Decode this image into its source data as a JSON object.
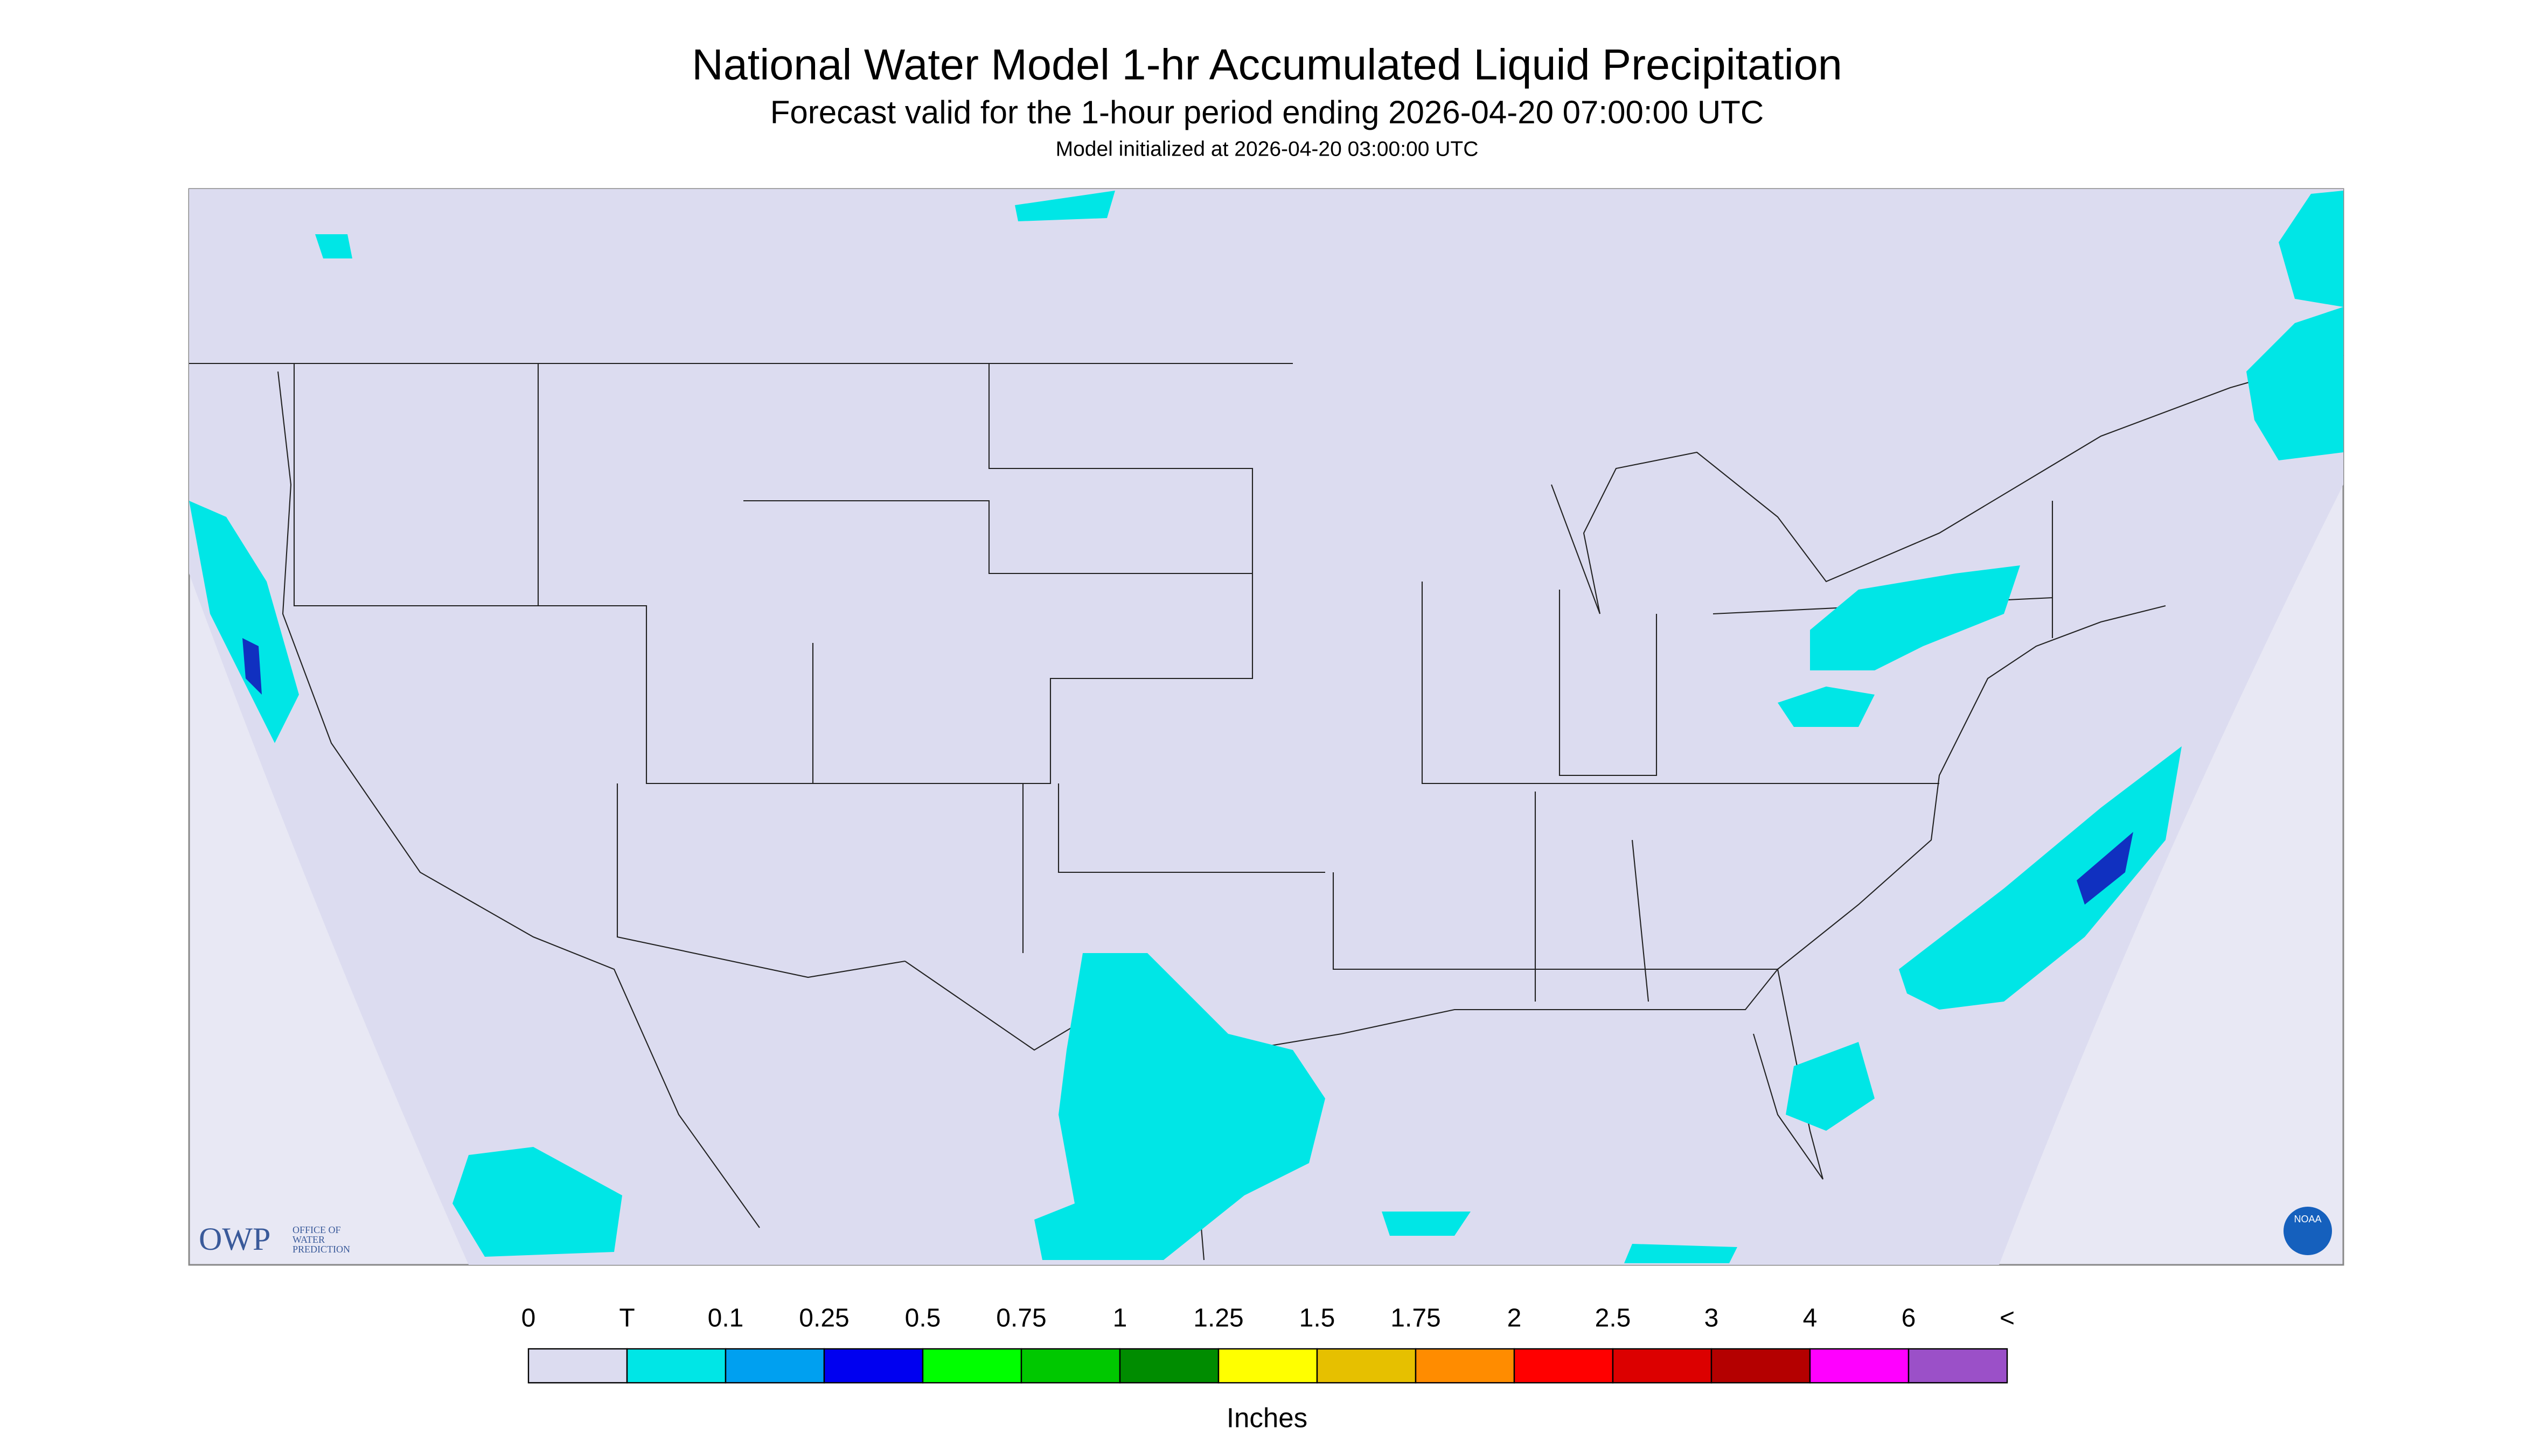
{
  "header": {
    "title": "National Water Model 1-hr Accumulated Liquid Precipitation",
    "subtitle": "Forecast valid for the 1-hour period ending 2026-04-20 07:00:00 UTC",
    "init": "Model initialized at 2026-04-20 03:00:00 UTC"
  },
  "logos": {
    "owp": "OWP",
    "owp_lines": [
      "OFFICE OF",
      "WATER",
      "PREDICTION"
    ],
    "noaa": "NOAA"
  },
  "legend": {
    "labels": [
      "0",
      "T",
      "0.1",
      "0.25",
      "0.5",
      "0.75",
      "1",
      "1.25",
      "1.5",
      "1.75",
      "2",
      "2.5",
      "3",
      "4",
      "6",
      "<"
    ],
    "colors": [
      "#dcdcf0",
      "#00e6e6",
      "#00a0f0",
      "#0000f0",
      "#00ff00",
      "#00c800",
      "#008c00",
      "#ffff00",
      "#e6c000",
      "#ff8c00",
      "#ff0000",
      "#dc0000",
      "#b40000",
      "#ff00ff",
      "#9b50c8"
    ],
    "units": "Inches"
  }
}
